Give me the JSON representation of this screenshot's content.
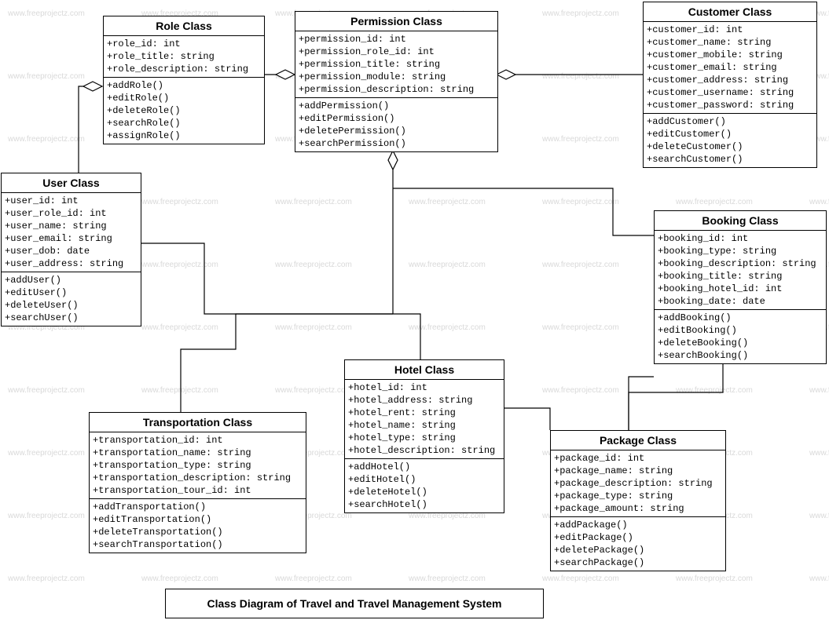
{
  "watermark_text": "www.freeprojectz.com",
  "watermark_color": "#d9d9d9",
  "line_color": "#000000",
  "background_color": "#ffffff",
  "caption": "Class Diagram of Travel and Travel Management System",
  "classes": {
    "role": {
      "title": "Role Class",
      "attrs": [
        "+role_id: int",
        "+role_title: string",
        "+role_description: string"
      ],
      "ops": [
        "+addRole()",
        "+editRole()",
        "+deleteRole()",
        "+searchRole()",
        "+assignRole()"
      ]
    },
    "permission": {
      "title": "Permission Class",
      "attrs": [
        "+permission_id: int",
        "+permission_role_id: int",
        "+permission_title: string",
        "+permission_module: string",
        "+permission_description: string"
      ],
      "ops": [
        "+addPermission()",
        "+editPermission()",
        "+deletePermission()",
        "+searchPermission()"
      ]
    },
    "customer": {
      "title": "Customer Class",
      "attrs": [
        "+customer_id: int",
        "+customer_name: string",
        "+customer_mobile: string",
        "+customer_email: string",
        "+customer_address: string",
        "+customer_username: string",
        "+customer_password: string"
      ],
      "ops": [
        "+addCustomer()",
        "+editCustomer()",
        "+deleteCustomer()",
        "+searchCustomer()"
      ]
    },
    "user": {
      "title": "User Class",
      "attrs": [
        "+user_id: int",
        "+user_role_id: int",
        "+user_name: string",
        "+user_email: string",
        "+user_dob: date",
        "+user_address: string"
      ],
      "ops": [
        "+addUser()",
        "+editUser()",
        "+deleteUser()",
        "+searchUser()"
      ]
    },
    "booking": {
      "title": "Booking Class",
      "attrs": [
        "+booking_id: int",
        "+booking_type: string",
        "+booking_description: string",
        "+booking_title: string",
        "+booking_hotel_id: int",
        "+booking_date: date"
      ],
      "ops": [
        "+addBooking()",
        "+editBooking()",
        "+deleteBooking()",
        "+searchBooking()"
      ]
    },
    "hotel": {
      "title": "Hotel  Class",
      "attrs": [
        "+hotel_id: int",
        "+hotel_address: string",
        "+hotel_rent: string",
        "+hotel_name: string",
        "+hotel_type: string",
        "+hotel_description: string"
      ],
      "ops": [
        "+addHotel()",
        "+editHotel()",
        "+deleteHotel()",
        "+searchHotel()"
      ]
    },
    "transportation": {
      "title": "Transportation Class",
      "attrs": [
        "+transportation_id: int",
        "+transportation_name: string",
        "+transportation_type: string",
        "+transportation_description: string",
        "+transportation_tour_id: int"
      ],
      "ops": [
        "+addTransportation()",
        "+editTransportation()",
        "+deleteTransportation()",
        "+searchTransportation()"
      ]
    },
    "package": {
      "title": "Package Class",
      "attrs": [
        "+package_id: int",
        "+package_name: string",
        "+package_description: string",
        "+package_type: string",
        "+package_amount: string"
      ],
      "ops": [
        "+addPackage()",
        "+editPackage()",
        "+deletePackage()",
        "+searchPackage()"
      ]
    }
  }
}
